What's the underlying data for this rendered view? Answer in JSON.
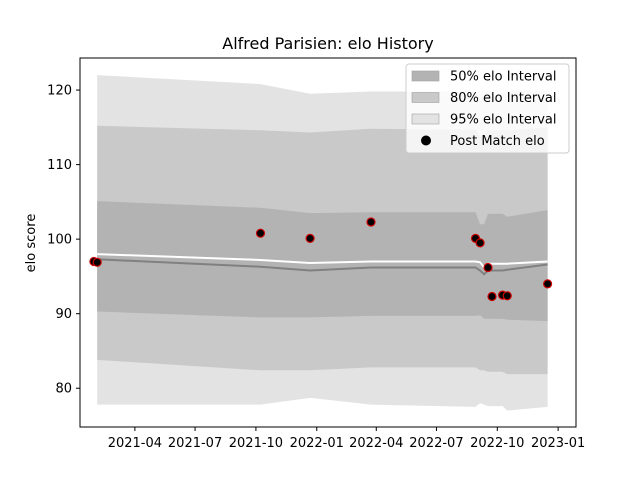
{
  "chart_data": {
    "type": "area",
    "title": "Alfred Parisien: elo History",
    "xlabel": "",
    "ylabel": "elo score",
    "xlim": [
      "2021-01-08",
      "2023-01-28"
    ],
    "ylim": [
      74.8,
      124.3
    ],
    "x_ticks": [
      "2021-04",
      "2021-07",
      "2021-10",
      "2022-01",
      "2022-04",
      "2022-07",
      "2022-10",
      "2023-01"
    ],
    "y_ticks": [
      80,
      90,
      100,
      110,
      120
    ],
    "grid": false,
    "legend_position": "top-right",
    "legend": [
      "50% elo Interval",
      "80% elo Interval",
      "95% elo Interval",
      "Post Match elo"
    ],
    "colors": {
      "band_50": "#b3b3b3",
      "band_80": "#c9c9c9",
      "band_95": "#e3e3e3",
      "median_line": "#808080",
      "mean_line": "#ffffff",
      "point_fill": "#000000",
      "point_edge": "#cc0000"
    },
    "dates": [
      "2021-02-03",
      "2021-10-08",
      "2021-12-22",
      "2022-03-24",
      "2022-08-29",
      "2022-09-05",
      "2022-09-11",
      "2022-09-17",
      "2022-10-09",
      "2022-10-16",
      "2022-12-16"
    ],
    "bands": [
      {
        "name": "95% elo Interval",
        "upper": [
          122.0,
          120.8,
          119.5,
          119.8,
          119.8,
          119.0,
          119.2,
          119.5,
          119.5,
          119.8,
          120.0
        ],
        "lower": [
          77.8,
          77.8,
          78.7,
          77.8,
          77.5,
          78.0,
          77.8,
          77.6,
          77.6,
          77.0,
          77.5
        ]
      },
      {
        "name": "80% elo Interval",
        "upper": [
          115.2,
          114.6,
          114.3,
          114.8,
          114.7,
          113.7,
          113.8,
          114.6,
          114.6,
          114.6,
          115.0
        ],
        "lower": [
          83.8,
          82.4,
          82.4,
          82.8,
          82.8,
          82.4,
          82.4,
          82.2,
          82.2,
          81.9,
          81.9
        ]
      },
      {
        "name": "50% elo Interval",
        "upper": [
          105.1,
          104.2,
          103.5,
          103.6,
          103.6,
          102.0,
          102.0,
          103.4,
          103.4,
          103.0,
          103.9
        ],
        "lower": [
          90.3,
          89.5,
          89.5,
          89.7,
          89.7,
          89.8,
          89.3,
          89.3,
          89.3,
          89.2,
          89.0
        ]
      }
    ],
    "median_line": [
      97.3,
      96.3,
      95.8,
      96.2,
      96.2,
      95.8,
      95.3,
      95.8,
      95.8,
      95.9,
      96.6
    ],
    "mean_line": [
      98.0,
      97.2,
      96.8,
      97.0,
      97.0,
      96.9,
      96.2,
      96.7,
      96.7,
      96.7,
      97.0
    ],
    "points": {
      "name": "Post Match elo",
      "x": [
        "2021-01-29",
        "2021-02-03",
        "2021-10-08",
        "2021-12-22",
        "2022-03-24",
        "2022-08-29",
        "2022-09-05",
        "2022-09-17",
        "2022-09-23",
        "2022-10-09",
        "2022-10-16",
        "2022-12-16"
      ],
      "y": [
        97.0,
        96.9,
        100.8,
        100.1,
        102.3,
        100.1,
        99.5,
        96.2,
        92.3,
        92.5,
        92.4,
        94.0
      ]
    }
  }
}
